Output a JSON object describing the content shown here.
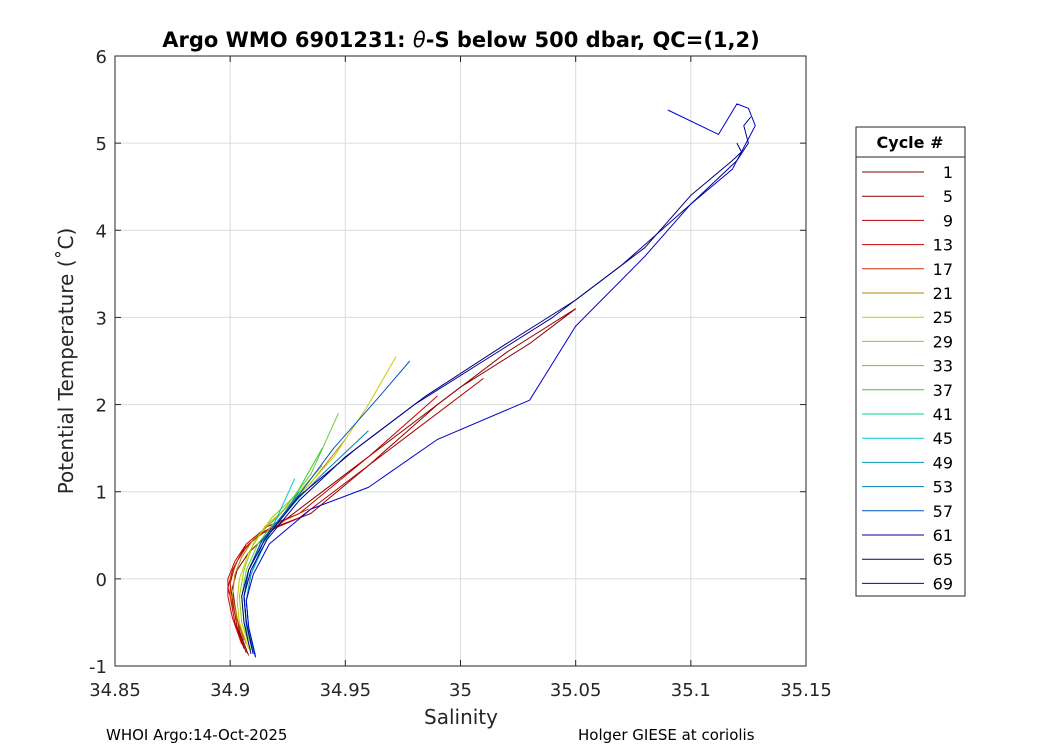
{
  "footer": {
    "left": "WHOI Argo:14-Oct-2025",
    "right": "Holger GIESE at coriolis"
  },
  "chart_data": {
    "type": "line",
    "title_prefix": "Argo WMO 6901231: ",
    "title_theta": "θ",
    "title_suffix": "-S below 500 dbar,  QC=(1,2)",
    "xlabel": "Salinity",
    "ylabel": "Potential Temperature (˚C)",
    "xlim": [
      34.85,
      35.15
    ],
    "ylim": [
      -1,
      6
    ],
    "xticks": [
      34.85,
      34.9,
      34.95,
      35,
      35.05,
      35.1,
      35.15
    ],
    "xtick_labels": [
      "34.85",
      "34.9",
      "34.95",
      "35",
      "35.05",
      "35.1",
      "35.15"
    ],
    "yticks": [
      -1,
      0,
      1,
      2,
      3,
      4,
      5,
      6
    ],
    "ytick_labels": [
      "-1",
      "0",
      "1",
      "2",
      "3",
      "4",
      "5",
      "6"
    ],
    "grid": true,
    "legend": {
      "title": "Cycle #",
      "placement": "right"
    },
    "series": [
      {
        "name": "1",
        "color": "#800000",
        "x": [
          34.908,
          34.904,
          34.902,
          34.901,
          34.903,
          34.908,
          34.92,
          34.94,
          34.97,
          35.0,
          35.03,
          35.05
        ],
        "y": [
          -0.88,
          -0.6,
          -0.3,
          -0.1,
          0.1,
          0.3,
          0.6,
          1.0,
          1.6,
          2.2,
          2.7,
          3.1
        ]
      },
      {
        "name": "5",
        "color": "#990000",
        "x": [
          34.907,
          34.903,
          34.901,
          34.9,
          34.902,
          34.906,
          34.915,
          34.935,
          34.96,
          34.99,
          35.02,
          35.05
        ],
        "y": [
          -0.85,
          -0.55,
          -0.25,
          -0.05,
          0.15,
          0.35,
          0.55,
          0.75,
          1.3,
          2.0,
          2.6,
          3.1
        ]
      },
      {
        "name": "9",
        "color": "#b30000",
        "x": [
          34.906,
          34.902,
          34.9,
          34.899,
          34.901,
          34.905,
          34.912,
          34.93,
          34.95,
          34.98,
          35.01
        ],
        "y": [
          -0.8,
          -0.5,
          -0.2,
          -0.1,
          0.1,
          0.3,
          0.5,
          0.7,
          1.1,
          1.7,
          2.3
        ]
      },
      {
        "name": "13",
        "color": "#cc0000",
        "x": [
          34.905,
          34.901,
          34.899,
          34.899,
          34.902,
          34.907,
          34.916,
          34.93,
          34.96,
          34.99
        ],
        "y": [
          -0.75,
          -0.45,
          -0.2,
          0.0,
          0.2,
          0.4,
          0.6,
          0.75,
          1.4,
          2.1
        ]
      },
      {
        "name": "17",
        "color": "#cc3300",
        "x": [
          34.906,
          34.902,
          34.9,
          34.9,
          34.903,
          34.908,
          34.918,
          34.934
        ],
        "y": [
          -0.7,
          -0.4,
          -0.2,
          0.0,
          0.2,
          0.4,
          0.6,
          0.8
        ]
      },
      {
        "name": "21",
        "color": "#b38600",
        "x": [
          34.907,
          34.903,
          34.901,
          34.902,
          34.905,
          34.91,
          34.92,
          34.935,
          34.95
        ],
        "y": [
          -0.75,
          -0.45,
          -0.2,
          0.05,
          0.25,
          0.45,
          0.7,
          1.1,
          1.6
        ]
      },
      {
        "name": "25",
        "color": "#cccc00",
        "x": [
          34.908,
          34.904,
          34.903,
          34.904,
          34.908,
          34.915,
          34.928,
          34.945,
          34.96,
          34.972
        ],
        "y": [
          -0.8,
          -0.5,
          -0.25,
          0.0,
          0.3,
          0.6,
          0.9,
          1.4,
          2.0,
          2.55
        ]
      },
      {
        "name": "29",
        "color": "#99cc00",
        "x": [
          34.909,
          34.905,
          34.904,
          34.906,
          34.91,
          34.918,
          34.93,
          34.94
        ],
        "y": [
          -0.82,
          -0.5,
          -0.2,
          0.1,
          0.4,
          0.7,
          1.0,
          1.3
        ]
      },
      {
        "name": "33",
        "color": "#66cc33",
        "x": [
          34.91,
          34.906,
          34.905,
          34.907,
          34.912,
          34.922,
          34.935,
          34.947
        ],
        "y": [
          -0.85,
          -0.5,
          -0.2,
          0.1,
          0.4,
          0.75,
          1.2,
          1.9
        ]
      },
      {
        "name": "37",
        "color": "#33cc33",
        "x": [
          34.91,
          34.907,
          34.906,
          34.908,
          34.913,
          34.925,
          34.94
        ],
        "y": [
          -0.86,
          -0.5,
          -0.2,
          0.1,
          0.4,
          0.8,
          1.5
        ]
      },
      {
        "name": "41",
        "color": "#00cc99",
        "x": [
          34.911,
          34.907,
          34.906,
          34.908,
          34.914,
          34.924,
          34.932
        ],
        "y": [
          -0.88,
          -0.55,
          -0.2,
          0.1,
          0.45,
          0.75,
          1.0
        ]
      },
      {
        "name": "45",
        "color": "#00cccc",
        "x": [
          34.911,
          34.908,
          34.907,
          34.909,
          34.915,
          34.922,
          34.928
        ],
        "y": [
          -0.9,
          -0.55,
          -0.25,
          0.05,
          0.4,
          0.8,
          1.15
        ]
      },
      {
        "name": "49",
        "color": "#0099b3",
        "x": [
          34.911,
          34.908,
          34.907,
          34.909,
          34.914,
          34.922,
          34.93
        ],
        "y": [
          -0.88,
          -0.55,
          -0.25,
          0.05,
          0.4,
          0.7,
          1.0
        ]
      },
      {
        "name": "53",
        "color": "#0080b3",
        "x": [
          34.91,
          34.907,
          34.906,
          34.908,
          34.913,
          34.925,
          34.94,
          34.96
        ],
        "y": [
          -0.86,
          -0.5,
          -0.2,
          0.1,
          0.4,
          0.8,
          1.2,
          1.7
        ]
      },
      {
        "name": "57",
        "color": "#0055cc",
        "x": [
          34.91,
          34.907,
          34.906,
          34.908,
          34.914,
          34.928,
          34.945,
          34.965,
          34.978
        ],
        "y": [
          -0.86,
          -0.5,
          -0.2,
          0.1,
          0.45,
          0.9,
          1.5,
          2.1,
          2.5
        ]
      },
      {
        "name": "61",
        "color": "#000099",
        "x": [
          34.91,
          34.907,
          34.906,
          34.909,
          34.916,
          34.93,
          34.95,
          34.98,
          35.01,
          35.04,
          35.07,
          35.1,
          35.12,
          35.125,
          35.123,
          35.126
        ],
        "y": [
          -0.86,
          -0.5,
          -0.2,
          0.1,
          0.45,
          0.9,
          1.4,
          2.0,
          2.5,
          3.0,
          3.6,
          4.3,
          4.8,
          5.0,
          5.2,
          5.3
        ]
      },
      {
        "name": "65",
        "color": "#00007a",
        "x": [
          34.909,
          34.906,
          34.905,
          34.908,
          34.915,
          34.93,
          34.955,
          34.985,
          35.02,
          35.05,
          35.08,
          35.1,
          35.118,
          35.122,
          35.12
        ],
        "y": [
          -0.86,
          -0.5,
          -0.2,
          0.1,
          0.45,
          0.95,
          1.5,
          2.1,
          2.7,
          3.2,
          3.8,
          4.4,
          4.8,
          4.9,
          5.0
        ]
      },
      {
        "name": "69",
        "color": "#0000cc",
        "x": [
          34.911,
          34.908,
          34.907,
          34.91,
          34.917,
          34.935,
          34.96,
          34.99,
          35.03,
          35.05,
          35.08,
          35.1,
          35.118,
          35.121,
          35.122,
          35.124,
          35.126,
          35.128,
          35.125,
          35.12,
          35.112,
          35.09
        ],
        "y": [
          -0.9,
          -0.55,
          -0.25,
          0.05,
          0.4,
          0.8,
          1.05,
          1.6,
          2.05,
          2.9,
          3.7,
          4.3,
          4.7,
          4.85,
          4.9,
          5.0,
          5.1,
          5.2,
          5.4,
          5.45,
          5.1,
          5.38
        ]
      }
    ]
  }
}
